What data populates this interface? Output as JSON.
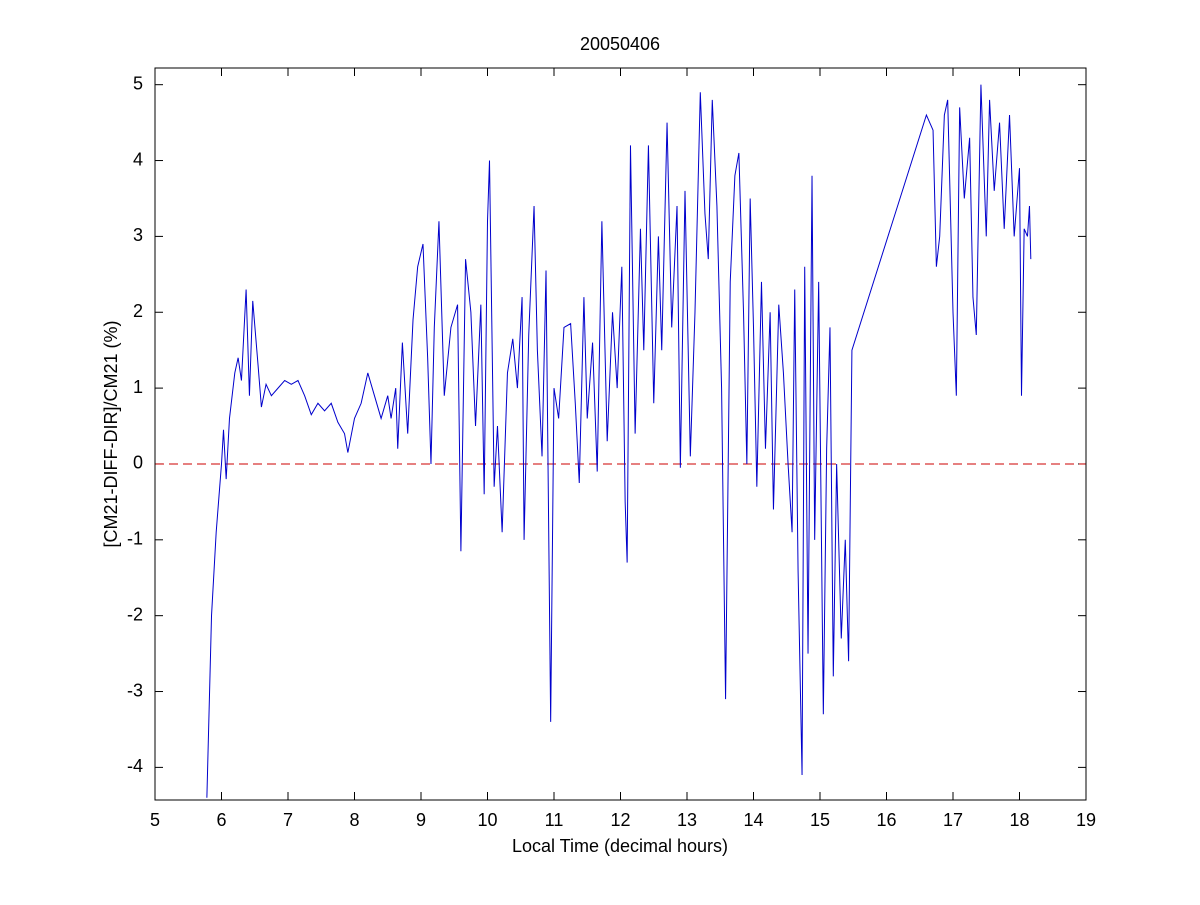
{
  "chart_data": {
    "type": "line",
    "title": "20050406",
    "x_label": "Local Time (decimal hours)",
    "y_label": "[CM21-DIFF-DIR]/CM21 (%)",
    "xlim": [
      5,
      19
    ],
    "ylim": [
      -4.43,
      5.22
    ],
    "xticks": [
      5,
      6,
      7,
      8,
      9,
      10,
      11,
      12,
      13,
      14,
      15,
      16,
      17,
      18,
      19
    ],
    "yticks": [
      -4,
      -3,
      -2,
      -1,
      0,
      1,
      2,
      3,
      4,
      5
    ],
    "reference_line": {
      "value": 0,
      "color": "#cc0000",
      "style": "dashed"
    },
    "series": [
      {
        "color": "#0000cc",
        "x": [
          5.78,
          5.85,
          5.92,
          6.0,
          6.03,
          6.07,
          6.12,
          6.2,
          6.25,
          6.3,
          6.37,
          6.42,
          6.47,
          6.55,
          6.6,
          6.67,
          6.75,
          6.85,
          6.95,
          7.05,
          7.15,
          7.25,
          7.35,
          7.45,
          7.55,
          7.65,
          7.75,
          7.85,
          7.9,
          8.0,
          8.1,
          8.2,
          8.3,
          8.4,
          8.5,
          8.55,
          8.62,
          8.65,
          8.72,
          8.8,
          8.88,
          8.95,
          9.03,
          9.1,
          9.15,
          9.2,
          9.27,
          9.35,
          9.45,
          9.55,
          9.6,
          9.67,
          9.75,
          9.82,
          9.9,
          9.95,
          10.0,
          10.03,
          10.1,
          10.15,
          10.22,
          10.3,
          10.38,
          10.45,
          10.52,
          10.55,
          10.62,
          10.7,
          10.75,
          10.82,
          10.88,
          10.95,
          11.0,
          11.07,
          11.15,
          11.25,
          11.32,
          11.38,
          11.45,
          11.5,
          11.58,
          11.65,
          11.72,
          11.8,
          11.88,
          11.95,
          12.02,
          12.07,
          12.1,
          12.15,
          12.22,
          12.3,
          12.35,
          12.42,
          12.5,
          12.57,
          12.62,
          12.7,
          12.77,
          12.85,
          12.9,
          12.97,
          13.05,
          13.12,
          13.2,
          13.27,
          13.32,
          13.38,
          13.45,
          13.52,
          13.58,
          13.65,
          13.72,
          13.78,
          13.85,
          13.9,
          13.95,
          14.0,
          14.05,
          14.12,
          14.18,
          14.25,
          14.3,
          14.38,
          14.45,
          14.52,
          14.58,
          14.62,
          14.67,
          14.73,
          14.77,
          14.82,
          14.88,
          14.92,
          14.98,
          15.05,
          15.1,
          15.15,
          15.2,
          15.25,
          15.32,
          15.38,
          15.43,
          15.48,
          16.6,
          16.7,
          16.75,
          16.8,
          16.87,
          16.92,
          17.0,
          17.05,
          17.1,
          17.17,
          17.25,
          17.3,
          17.35,
          17.42,
          17.5,
          17.55,
          17.62,
          17.7,
          17.77,
          17.85,
          17.92,
          18.0,
          18.03,
          18.07,
          18.12,
          18.15,
          18.17
        ],
        "values": [
          -4.4,
          -2.0,
          -0.9,
          0.0,
          0.45,
          -0.2,
          0.6,
          1.2,
          1.4,
          1.1,
          2.3,
          0.9,
          2.15,
          1.3,
          0.75,
          1.05,
          0.9,
          1.0,
          1.1,
          1.05,
          1.1,
          0.9,
          0.65,
          0.8,
          0.7,
          0.8,
          0.55,
          0.4,
          0.15,
          0.6,
          0.8,
          1.2,
          0.9,
          0.6,
          0.9,
          0.6,
          1.0,
          0.2,
          1.6,
          0.4,
          1.9,
          2.6,
          2.9,
          1.4,
          0.0,
          1.8,
          3.2,
          0.9,
          1.8,
          2.1,
          -1.15,
          2.7,
          2.0,
          0.5,
          2.1,
          -0.4,
          3.2,
          4.0,
          -0.3,
          0.5,
          -0.9,
          1.2,
          1.65,
          1.0,
          2.2,
          -1.0,
          1.7,
          3.4,
          1.5,
          0.1,
          2.55,
          -3.4,
          1.0,
          0.6,
          1.8,
          1.85,
          0.8,
          -0.25,
          2.2,
          0.6,
          1.6,
          -0.1,
          3.2,
          0.3,
          2.0,
          1.0,
          2.6,
          -0.5,
          -1.3,
          4.2,
          0.4,
          3.1,
          1.5,
          4.2,
          0.8,
          3.0,
          1.5,
          4.5,
          1.8,
          3.4,
          -0.05,
          3.6,
          0.1,
          2.0,
          4.9,
          3.3,
          2.7,
          4.8,
          3.4,
          1.0,
          -3.1,
          2.4,
          3.8,
          4.1,
          2.0,
          0.0,
          3.5,
          1.8,
          -0.3,
          2.4,
          0.2,
          2.0,
          -0.6,
          2.1,
          1.2,
          0.0,
          -0.9,
          2.3,
          -1.4,
          -4.1,
          2.6,
          -2.5,
          3.8,
          -1.0,
          2.4,
          -3.3,
          0.2,
          1.8,
          -2.8,
          0.0,
          -2.3,
          -1.0,
          -2.6,
          1.5,
          4.6,
          4.4,
          2.6,
          3.0,
          4.6,
          4.8,
          2.0,
          0.9,
          4.7,
          3.5,
          4.3,
          2.2,
          1.7,
          5.0,
          3.0,
          4.8,
          3.6,
          4.5,
          3.1,
          4.6,
          3.0,
          3.9,
          0.9,
          3.1,
          3.0,
          3.4,
          2.7
        ]
      }
    ]
  }
}
